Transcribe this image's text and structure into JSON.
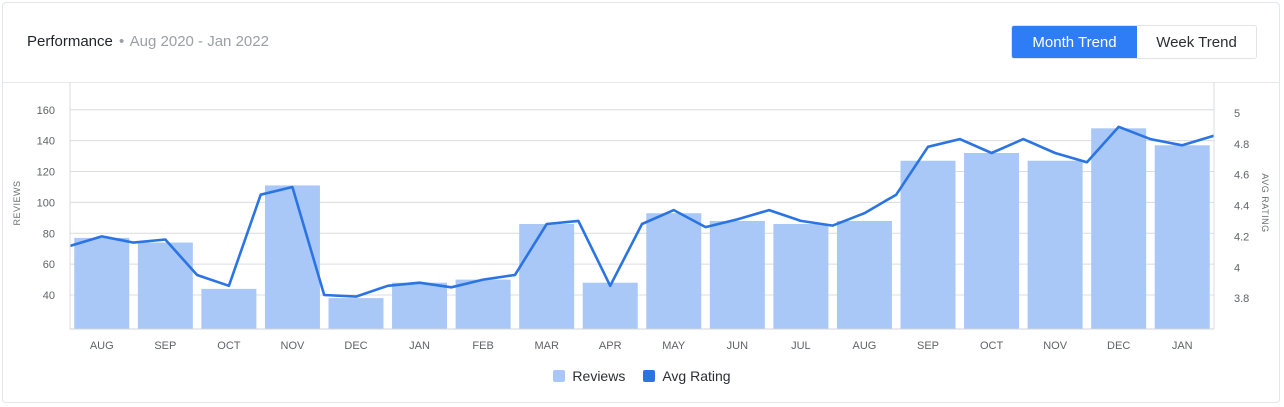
{
  "header": {
    "title": "Performance",
    "separator": "•",
    "range": "Aug 2020 - Jan 2022"
  },
  "toggle": {
    "month_label": "Month Trend",
    "week_label": "Week Trend",
    "selected": "Month Trend"
  },
  "colors": {
    "bar": "#a9c8f7",
    "line": "#2b74e4",
    "active_button": "#2f7df6"
  },
  "chart_data": {
    "type": "bar",
    "categories": [
      "AUG",
      "SEP",
      "OCT",
      "NOV",
      "DEC",
      "JAN",
      "FEB",
      "MAR",
      "APR",
      "MAY",
      "JUN",
      "JUL",
      "AUG",
      "SEP",
      "OCT",
      "NOV",
      "DEC",
      "JAN"
    ],
    "series": [
      {
        "name": "Reviews",
        "type": "bar",
        "axis": "left",
        "values": [
          77,
          74,
          44,
          111,
          38,
          48,
          50,
          86,
          48,
          93,
          88,
          86,
          88,
          127,
          132,
          127,
          148,
          137
        ]
      },
      {
        "name": "Avg Rating",
        "type": "line",
        "axis": "right",
        "x": [
          -0.5,
          0,
          0.5,
          1,
          1.5,
          2,
          2.5,
          3,
          3.5,
          4,
          4.5,
          5,
          5.5,
          6,
          6.5,
          7,
          7.5,
          8,
          8.5,
          9,
          9.5,
          10,
          10.5,
          11,
          11.5,
          12,
          12.5,
          13,
          13.5,
          14,
          14.5,
          15,
          15.5,
          16,
          16.5,
          17,
          17.5
        ],
        "values": [
          4.14,
          4.2,
          4.16,
          4.18,
          3.95,
          3.88,
          4.47,
          4.52,
          3.82,
          3.81,
          3.88,
          3.9,
          3.87,
          3.92,
          3.95,
          4.28,
          4.3,
          3.88,
          4.28,
          4.37,
          4.26,
          4.31,
          4.37,
          4.3,
          4.27,
          4.35,
          4.47,
          4.78,
          4.83,
          4.74,
          4.83,
          4.74,
          4.68,
          4.91,
          4.83,
          4.79,
          4.85
        ]
      }
    ],
    "ylabel_left": "REVIEWS",
    "ylabel_right": "AVG RATING",
    "yticks_left": [
      40,
      60,
      80,
      100,
      120,
      140,
      160
    ],
    "yticks_right": [
      "3.8",
      "4",
      "4.2",
      "4.4",
      "4.6",
      "4.8",
      "5"
    ],
    "ylim_left": [
      18,
      178
    ],
    "ylim_right": [
      3.6,
      5.2
    ],
    "grid": true,
    "legend_position": "bottom-center"
  }
}
